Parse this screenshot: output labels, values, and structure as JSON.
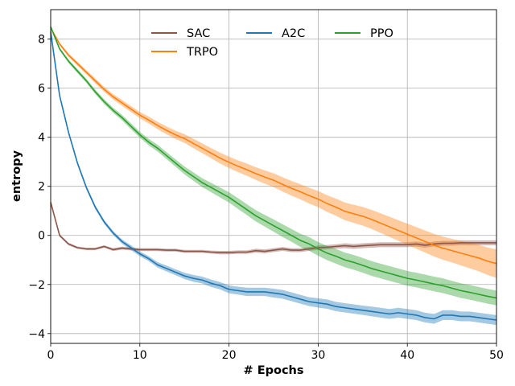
{
  "chart_data": {
    "type": "line",
    "title": "",
    "xlabel": "# Epochs",
    "ylabel": "entropy",
    "xlim": [
      0,
      50
    ],
    "ylim": [
      -4.4,
      9.2
    ],
    "xticks": [
      0,
      10,
      20,
      30,
      40,
      50
    ],
    "yticks": [
      -4,
      -2,
      0,
      2,
      4,
      6,
      8
    ],
    "grid": true,
    "legend": {
      "placement": "top-center",
      "columns": 3
    },
    "x": [
      0,
      1,
      2,
      3,
      4,
      5,
      6,
      7,
      8,
      9,
      10,
      11,
      12,
      13,
      14,
      15,
      16,
      17,
      18,
      19,
      20,
      21,
      22,
      23,
      24,
      25,
      26,
      27,
      28,
      29,
      30,
      31,
      32,
      33,
      34,
      35,
      36,
      37,
      38,
      39,
      40,
      41,
      42,
      43,
      44,
      45,
      46,
      47,
      48,
      49,
      50
    ],
    "series": [
      {
        "name": "SAC",
        "color": "#8c564b",
        "values": [
          1.35,
          0.0,
          -0.35,
          -0.5,
          -0.55,
          -0.55,
          -0.45,
          -0.58,
          -0.52,
          -0.55,
          -0.58,
          -0.58,
          -0.58,
          -0.6,
          -0.6,
          -0.65,
          -0.65,
          -0.65,
          -0.68,
          -0.7,
          -0.7,
          -0.68,
          -0.68,
          -0.62,
          -0.65,
          -0.6,
          -0.55,
          -0.6,
          -0.6,
          -0.55,
          -0.5,
          -0.48,
          -0.45,
          -0.42,
          -0.45,
          -0.42,
          -0.4,
          -0.38,
          -0.38,
          -0.38,
          -0.38,
          -0.35,
          -0.4,
          -0.35,
          -0.32,
          -0.32,
          -0.3,
          -0.3,
          -0.3,
          -0.3,
          -0.3
        ],
        "band": [
          0.05,
          0.05,
          0.05,
          0.05,
          0.05,
          0.05,
          0.05,
          0.06,
          0.06,
          0.06,
          0.06,
          0.06,
          0.06,
          0.06,
          0.06,
          0.06,
          0.06,
          0.06,
          0.06,
          0.07,
          0.07,
          0.07,
          0.07,
          0.08,
          0.08,
          0.08,
          0.08,
          0.08,
          0.08,
          0.08,
          0.09,
          0.09,
          0.09,
          0.1,
          0.1,
          0.1,
          0.1,
          0.1,
          0.1,
          0.1,
          0.1,
          0.1,
          0.1,
          0.1,
          0.1,
          0.1,
          0.1,
          0.1,
          0.1,
          0.1,
          0.1
        ]
      },
      {
        "name": "TRPO",
        "color": "#ff7f0e",
        "values": [
          8.45,
          7.8,
          7.35,
          7.0,
          6.65,
          6.3,
          5.95,
          5.65,
          5.4,
          5.15,
          4.9,
          4.7,
          4.48,
          4.28,
          4.1,
          3.95,
          3.75,
          3.55,
          3.35,
          3.15,
          2.98,
          2.82,
          2.68,
          2.52,
          2.38,
          2.25,
          2.08,
          1.92,
          1.78,
          1.62,
          1.48,
          1.3,
          1.15,
          0.98,
          0.88,
          0.78,
          0.65,
          0.5,
          0.35,
          0.2,
          0.05,
          -0.1,
          -0.25,
          -0.4,
          -0.52,
          -0.62,
          -0.72,
          -0.82,
          -0.92,
          -1.05,
          -1.15
        ],
        "band": [
          0.05,
          0.06,
          0.07,
          0.08,
          0.09,
          0.1,
          0.1,
          0.11,
          0.12,
          0.12,
          0.13,
          0.14,
          0.15,
          0.16,
          0.17,
          0.18,
          0.19,
          0.2,
          0.21,
          0.22,
          0.23,
          0.24,
          0.25,
          0.26,
          0.27,
          0.28,
          0.29,
          0.3,
          0.31,
          0.32,
          0.33,
          0.34,
          0.35,
          0.36,
          0.37,
          0.38,
          0.39,
          0.4,
          0.41,
          0.42,
          0.43,
          0.44,
          0.45,
          0.46,
          0.47,
          0.48,
          0.5,
          0.52,
          0.54,
          0.56,
          0.58
        ]
      },
      {
        "name": "A2C",
        "color": "#1f77b4",
        "values": [
          8.3,
          5.7,
          4.2,
          2.95,
          1.95,
          1.15,
          0.55,
          0.1,
          -0.25,
          -0.5,
          -0.75,
          -0.95,
          -1.2,
          -1.35,
          -1.5,
          -1.65,
          -1.75,
          -1.82,
          -1.95,
          -2.05,
          -2.2,
          -2.25,
          -2.3,
          -2.3,
          -2.3,
          -2.35,
          -2.4,
          -2.5,
          -2.6,
          -2.7,
          -2.75,
          -2.8,
          -2.9,
          -2.95,
          -3.0,
          -3.05,
          -3.1,
          -3.15,
          -3.2,
          -3.15,
          -3.2,
          -3.25,
          -3.35,
          -3.4,
          -3.25,
          -3.25,
          -3.3,
          -3.3,
          -3.35,
          -3.4,
          -3.45
        ],
        "band": [
          0.05,
          0.08,
          0.08,
          0.08,
          0.08,
          0.08,
          0.08,
          0.08,
          0.09,
          0.1,
          0.1,
          0.1,
          0.11,
          0.12,
          0.12,
          0.13,
          0.14,
          0.14,
          0.15,
          0.15,
          0.16,
          0.16,
          0.17,
          0.17,
          0.17,
          0.18,
          0.18,
          0.18,
          0.18,
          0.18,
          0.19,
          0.19,
          0.19,
          0.19,
          0.19,
          0.19,
          0.2,
          0.2,
          0.2,
          0.2,
          0.2,
          0.2,
          0.2,
          0.2,
          0.2,
          0.2,
          0.2,
          0.2,
          0.2,
          0.2,
          0.2
        ]
      },
      {
        "name": "PPO",
        "color": "#2ca02c",
        "values": [
          8.5,
          7.6,
          7.1,
          6.7,
          6.3,
          5.85,
          5.45,
          5.1,
          4.8,
          4.45,
          4.1,
          3.8,
          3.55,
          3.25,
          2.95,
          2.65,
          2.4,
          2.15,
          1.95,
          1.75,
          1.55,
          1.3,
          1.05,
          0.8,
          0.6,
          0.4,
          0.2,
          0.0,
          -0.2,
          -0.35,
          -0.55,
          -0.72,
          -0.85,
          -1.0,
          -1.1,
          -1.22,
          -1.35,
          -1.45,
          -1.55,
          -1.65,
          -1.75,
          -1.82,
          -1.9,
          -1.98,
          -2.05,
          -2.15,
          -2.25,
          -2.32,
          -2.4,
          -2.48,
          -2.55
        ],
        "band": [
          0.05,
          0.06,
          0.07,
          0.08,
          0.08,
          0.09,
          0.1,
          0.1,
          0.11,
          0.12,
          0.12,
          0.13,
          0.14,
          0.14,
          0.15,
          0.16,
          0.17,
          0.18,
          0.19,
          0.2,
          0.21,
          0.22,
          0.22,
          0.23,
          0.24,
          0.25,
          0.26,
          0.26,
          0.27,
          0.28,
          0.28,
          0.29,
          0.3,
          0.3,
          0.3,
          0.3,
          0.3,
          0.3,
          0.3,
          0.3,
          0.3,
          0.3,
          0.3,
          0.3,
          0.3,
          0.3,
          0.3,
          0.3,
          0.3,
          0.3,
          0.3
        ]
      }
    ]
  }
}
